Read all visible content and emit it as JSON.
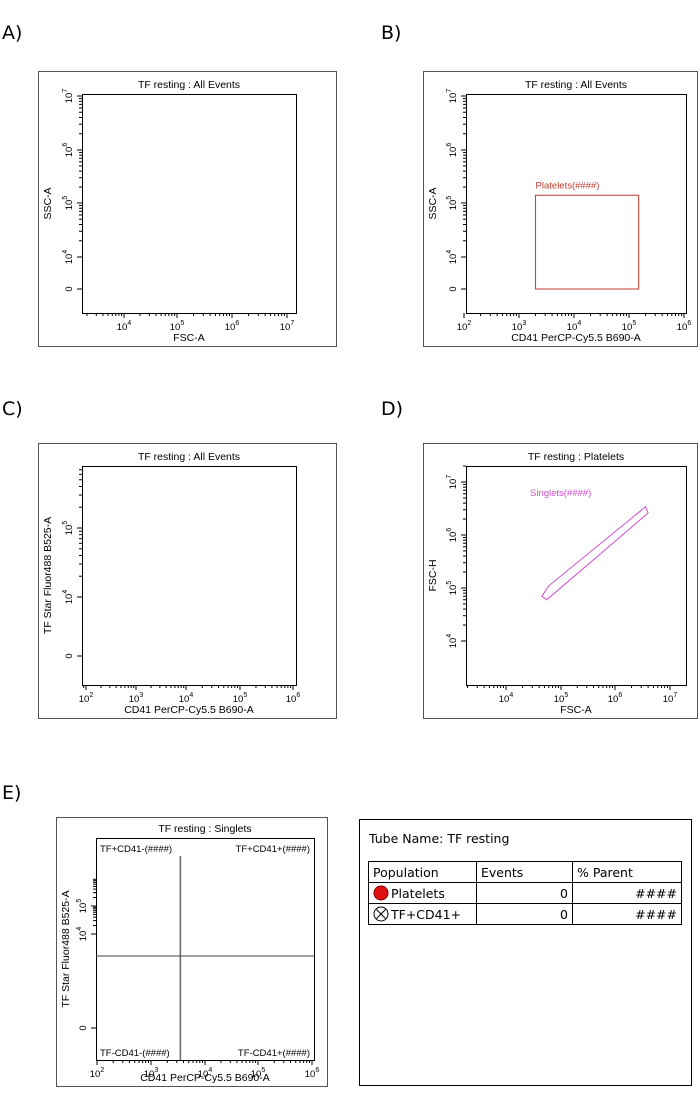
{
  "chart_data": [
    {
      "panel": "A)",
      "type": "scatter",
      "title": "TF resting : All Events",
      "xlabel": "FSC-A",
      "ylabel": "SSC-A",
      "x_scale": "biexponential",
      "y_scale": "biexponential",
      "x_ticks": [
        {
          "base": "10",
          "exp": "4"
        },
        {
          "base": "10",
          "exp": "5"
        },
        {
          "base": "10",
          "exp": "6"
        },
        {
          "base": "10",
          "exp": "7"
        }
      ],
      "y_ticks": [
        {
          "base": "0",
          "exp": ""
        },
        {
          "base": "10",
          "exp": "4"
        },
        {
          "base": "10",
          "exp": "5"
        },
        {
          "base": "10",
          "exp": "6"
        },
        {
          "base": "10",
          "exp": "7"
        }
      ],
      "points": [],
      "gates": []
    },
    {
      "panel": "B)",
      "type": "scatter",
      "title": "TF resting : All Events",
      "xlabel": "CD41 PerCP-Cy5.5 B690-A",
      "ylabel": "SSC-A",
      "x_scale": "log",
      "y_scale": "biexponential",
      "x_ticks": [
        {
          "base": "10",
          "exp": "2"
        },
        {
          "base": "10",
          "exp": "3"
        },
        {
          "base": "10",
          "exp": "4"
        },
        {
          "base": "10",
          "exp": "5"
        },
        {
          "base": "10",
          "exp": "6"
        }
      ],
      "y_ticks": [
        {
          "base": "0",
          "exp": ""
        },
        {
          "base": "10",
          "exp": "4"
        },
        {
          "base": "10",
          "exp": "5"
        },
        {
          "base": "10",
          "exp": "6"
        },
        {
          "base": "10",
          "exp": "7"
        }
      ],
      "points": [],
      "gates": [
        {
          "shape": "rectangle",
          "label": "Platelets(####)",
          "color": "#c0392b",
          "x_range": [
            2000,
            150000
          ],
          "y_range": [
            0,
            140000
          ]
        }
      ]
    },
    {
      "panel": "C)",
      "type": "scatter",
      "title": "TF resting : All Events",
      "xlabel": "CD41 PerCP-Cy5.5 B690-A",
      "ylabel": "TF Star Fluor488 B525-A",
      "x_scale": "log",
      "y_scale": "biexponential",
      "x_ticks": [
        {
          "base": "10",
          "exp": "2"
        },
        {
          "base": "10",
          "exp": "3"
        },
        {
          "base": "10",
          "exp": "4"
        },
        {
          "base": "10",
          "exp": "5"
        },
        {
          "base": "10",
          "exp": "6"
        }
      ],
      "y_ticks": [
        {
          "base": "0",
          "exp": ""
        },
        {
          "base": "10",
          "exp": "4"
        },
        {
          "base": "10",
          "exp": "5"
        }
      ],
      "points": [],
      "gates": []
    },
    {
      "panel": "D)",
      "type": "scatter",
      "title": "TF resting : Platelets",
      "xlabel": "FSC-A",
      "ylabel": "FSC-H",
      "x_scale": "log",
      "y_scale": "biexponential",
      "x_ticks": [
        {
          "base": "10",
          "exp": "4"
        },
        {
          "base": "10",
          "exp": "5"
        },
        {
          "base": "10",
          "exp": "6"
        },
        {
          "base": "10",
          "exp": "7"
        }
      ],
      "y_ticks": [
        {
          "base": "10",
          "exp": "4"
        },
        {
          "base": "10",
          "exp": "5"
        },
        {
          "base": "10",
          "exp": "6"
        },
        {
          "base": "10",
          "exp": "7"
        }
      ],
      "points": [],
      "gates": [
        {
          "shape": "polygon",
          "label": "Singlets(####)",
          "color": "#d04cd0",
          "vertices": [
            [
              45000,
              70000
            ],
            [
              60000,
              110000
            ],
            [
              3600000,
              3400000
            ],
            [
              4000000,
              2600000
            ],
            [
              55000,
              60000
            ]
          ]
        }
      ]
    },
    {
      "panel": "E)",
      "type": "scatter",
      "title": "TF resting : Singlets",
      "xlabel": "CD41 PerCP-Cy5.5 B690-A",
      "ylabel": "TF Star Fluor488 B525-A",
      "x_scale": "log",
      "y_scale": "biexponential",
      "x_ticks": [
        {
          "base": "10",
          "exp": "2"
        },
        {
          "base": "10",
          "exp": "3"
        },
        {
          "base": "10",
          "exp": "4"
        },
        {
          "base": "10",
          "exp": "5"
        },
        {
          "base": "10",
          "exp": "6"
        }
      ],
      "y_ticks": [
        {
          "base": "0",
          "exp": ""
        },
        {
          "base": "10",
          "exp": "4"
        },
        {
          "base": "10",
          "exp": "5"
        }
      ],
      "points": [],
      "gates": [
        {
          "shape": "quadrant",
          "x_threshold": 3500,
          "y_threshold": 7000,
          "labels": {
            "top_left": "TF+CD41-(####)",
            "top_right": "TF+CD41+(####)",
            "bottom_left": "TF-CD41-(####)",
            "bottom_right": "TF-CD41+(####)"
          }
        }
      ]
    }
  ],
  "stats": {
    "tube_name": "Tube Name: TF resting",
    "headers": [
      "Population",
      "Events",
      "% Parent"
    ],
    "rows": [
      {
        "population": "Platelets",
        "events": "0",
        "parent": "####",
        "icon": "red-dot-icon",
        "icon_color": "#e01010"
      },
      {
        "population": "TF+CD41+",
        "events": "0",
        "parent": "####",
        "icon": "circled-x-icon"
      }
    ]
  }
}
